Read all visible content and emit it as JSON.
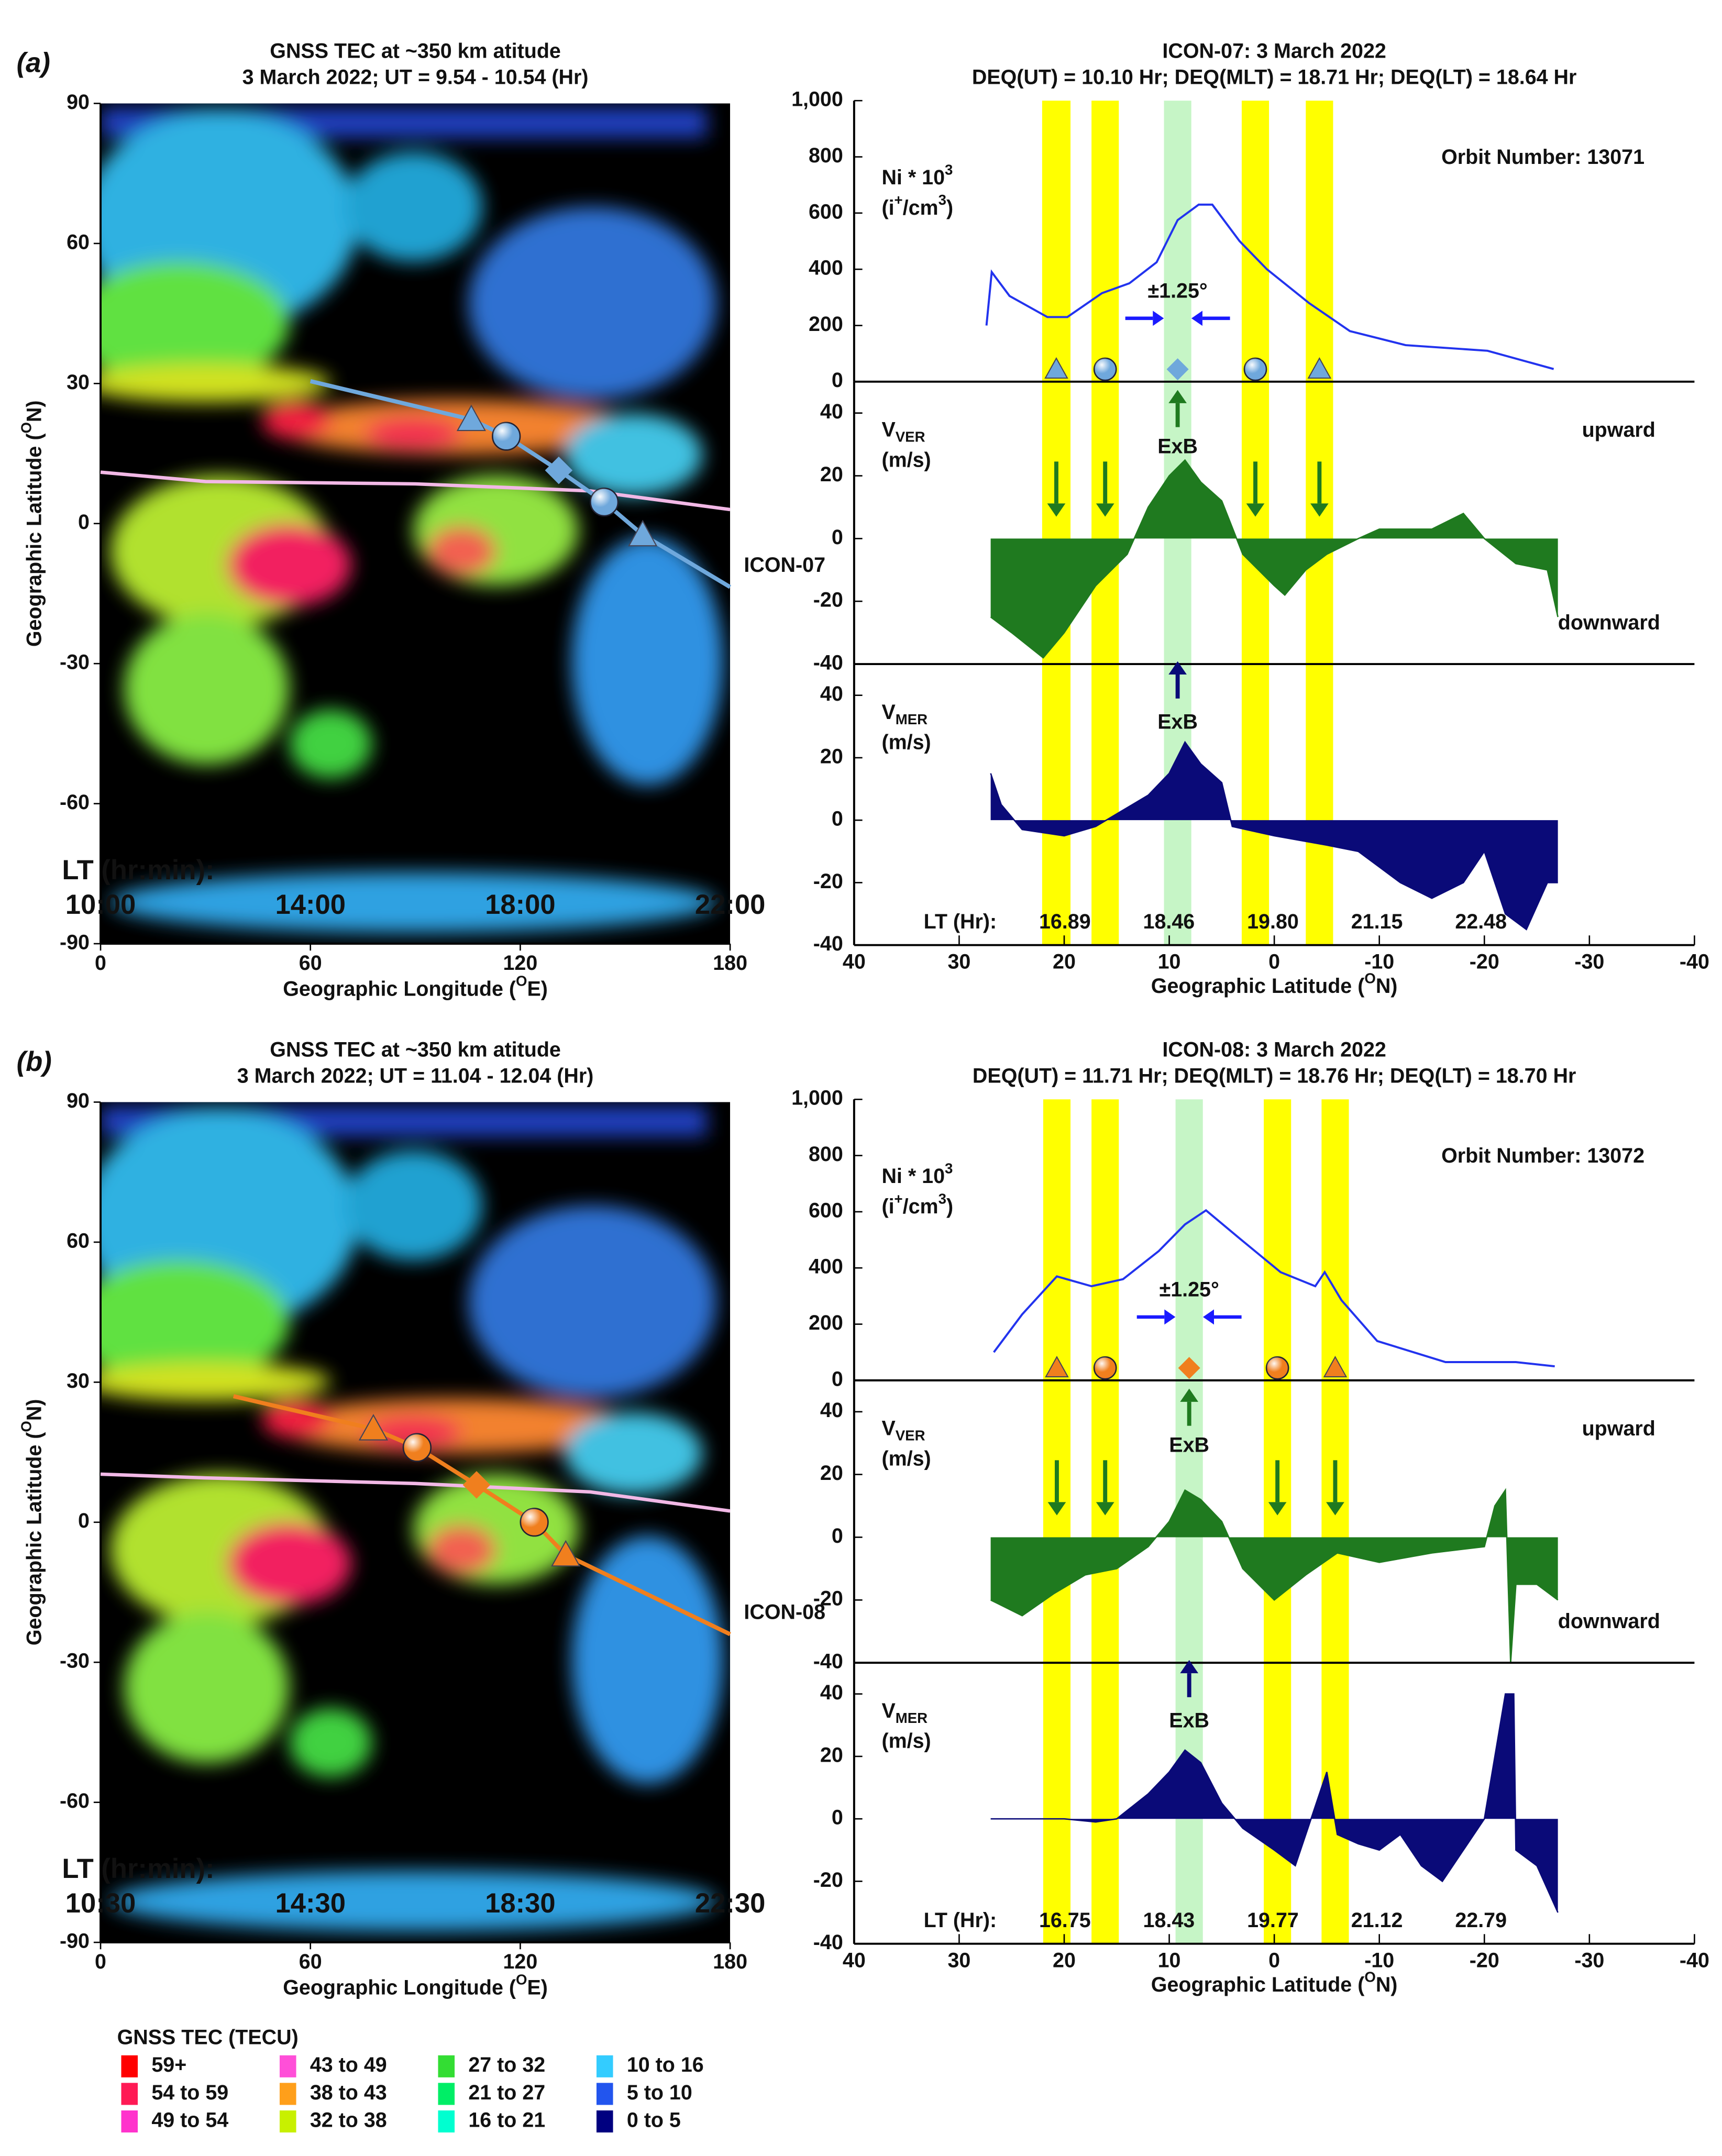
{
  "chart_data": [
    {
      "type": "map",
      "panel": "(a)",
      "title": [
        "GNSS TEC at ~350 km atitude",
        "3 March 2022;  UT = 9.54 - 10.54 (Hr)"
      ],
      "xlabel": [
        "Geographic Longitude (",
        "O",
        "E)"
      ],
      "ylabel": [
        "Geographic Latitude (",
        "O",
        "N)"
      ],
      "xlim": [
        0,
        180
      ],
      "xticks": [
        0,
        60,
        120,
        180
      ],
      "ylim": [
        -90,
        90
      ],
      "yticks": [
        -90,
        -60,
        -30,
        0,
        30,
        60,
        90
      ],
      "lt_title": "LT (hr:min):",
      "lt_labels": [
        "10:00",
        "14:00",
        "18:00",
        "22:00"
      ],
      "lt_color": "#ff1a1a",
      "track": {
        "name": "ICON-07",
        "color": "#6fa8dc",
        "lon": [
          60,
          106,
          116,
          131,
          144,
          155,
          180
        ],
        "lat": [
          30.5,
          22.3,
          18.7,
          11.4,
          4.6,
          -2.4,
          -13.6
        ]
      },
      "equator": {
        "color": "#f2b8e6",
        "lon": [
          0,
          30,
          90,
          140,
          180
        ],
        "lat": [
          11,
          9,
          8.5,
          7,
          3
        ]
      }
    },
    {
      "type": "line",
      "title": [
        "ICON-07: 3 March 2022",
        "DEQ(UT) = 10.10 Hr; DEQ(MLT) = 18.71 Hr; DEQ(LT) = 18.64 Hr"
      ],
      "ylabel": [
        [
          "Ni * 10",
          "3"
        ],
        [
          "(i",
          "+",
          "/cm",
          "3",
          ")"
        ]
      ],
      "axis_color": "#1a1aff",
      "color": "#2233ee",
      "orbit": "Orbit Number: 13071",
      "orbit_color": "#7ab8e8",
      "annotation": "±1.25°",
      "xlim": [
        40,
        -40
      ],
      "ylim": [
        0,
        1000
      ],
      "yticks": [
        0,
        200,
        400,
        600,
        800,
        {
          "value": 1000,
          "label": "1,000"
        }
      ],
      "x": [
        27.4,
        26.9,
        25.2,
        21.6,
        19.7,
        16.4,
        13.8,
        11.2,
        9.2,
        7.2,
        5.9,
        3.3,
        0.7,
        -3.3,
        -7.2,
        -12.5,
        -20.3,
        -26.6
      ],
      "values": [
        200,
        390,
        305,
        230,
        230,
        315,
        350,
        425,
        575,
        630,
        630,
        500,
        400,
        280,
        180,
        130,
        110,
        45
      ],
      "bands": [
        {
          "lim": [
            22.1,
            19.4
          ],
          "color": "#ffff00"
        },
        {
          "lim": [
            17.4,
            14.8
          ],
          "color": "#ffff00"
        },
        {
          "lim": [
            10.5,
            7.9
          ],
          "color": "#c6f5c6"
        },
        {
          "lim": [
            3.1,
            0.5
          ],
          "color": "#ffff00"
        },
        {
          "lim": [
            -3.0,
            -5.6
          ],
          "color": "#ffff00"
        }
      ]
    },
    {
      "type": "area",
      "ylabel": [
        [
          "V",
          "VER"
        ],
        [
          "(m/s)"
        ]
      ],
      "color": "#1f7a1f",
      "up_label": "upward",
      "down_label": "downward",
      "arrow_label": "ExB",
      "xlim": [
        40,
        -40
      ],
      "ylim": [
        -40,
        50
      ],
      "yticks": [
        -40,
        -20,
        0,
        20,
        40
      ],
      "x": [
        27,
        25,
        22,
        20,
        17,
        14,
        12,
        10,
        8.5,
        7,
        5,
        3,
        0,
        -1,
        -3,
        -5,
        -8,
        -10,
        -15,
        -18,
        -20,
        -23,
        -26,
        -27
      ],
      "values": [
        -25,
        -30,
        -38,
        -30,
        -15,
        -5,
        10,
        20,
        25,
        18,
        12,
        -5,
        -15,
        -18,
        -10,
        -5,
        0,
        3,
        3,
        8,
        0,
        -8,
        -10,
        -25
      ]
    },
    {
      "type": "area",
      "ylabel": [
        [
          "V",
          "MER"
        ],
        [
          "(m/s)"
        ]
      ],
      "color": "#0a0a78",
      "arrow_label": "ExB",
      "xlabel": [
        "Geographic Latitude (",
        "O",
        "N)"
      ],
      "lt_title": "LT (Hr):",
      "lt_labels": [
        "16.89",
        "18.46",
        "19.80",
        "21.15",
        "22.48"
      ],
      "lt_color": "#1a1aff",
      "xlim": [
        40,
        -40
      ],
      "xticks": [
        40,
        30,
        20,
        10,
        0,
        -10,
        -20,
        -30,
        -40
      ],
      "ylim": [
        -40,
        50
      ],
      "yticks": [
        -40,
        -20,
        0,
        20,
        40
      ],
      "x": [
        27,
        26,
        24,
        20,
        17,
        15,
        12,
        10,
        8.5,
        7,
        5,
        4,
        0,
        -5,
        -8,
        -10,
        -12,
        -15,
        -18,
        -20,
        -22,
        -24,
        -26,
        -27
      ],
      "values": [
        15,
        5,
        -3,
        -5,
        -2,
        2,
        8,
        15,
        25,
        18,
        12,
        -2,
        -5,
        -8,
        -10,
        -15,
        -20,
        -25,
        -20,
        -10,
        -30,
        -35,
        -20,
        -20
      ]
    },
    {
      "type": "map",
      "panel": "(b)",
      "title": [
        "GNSS TEC at ~350 km atitude",
        "3 March 2022;  UT = 11.04 - 12.04 (Hr)"
      ],
      "xlabel": [
        "Geographic Longitude (",
        "O",
        "E)"
      ],
      "ylabel": [
        "Geographic Latitude (",
        "O",
        "N)"
      ],
      "xlim": [
        0,
        180
      ],
      "xticks": [
        0,
        60,
        120,
        180
      ],
      "ylim": [
        -90,
        90
      ],
      "yticks": [
        -90,
        -60,
        -30,
        0,
        30,
        60,
        90
      ],
      "lt_title": "LT (hr:min):",
      "lt_labels": [
        "10:30",
        "14:30",
        "18:30",
        "22:30"
      ],
      "lt_color": "#ff1a1a",
      "track": {
        "name": "ICON-08",
        "color": "#f07f1e",
        "lon": [
          38,
          78,
          90.5,
          107.5,
          124,
          133,
          180
        ],
        "lat": [
          27,
          20,
          16,
          8,
          0,
          -7,
          -24
        ]
      },
      "equator": {
        "color": "#f2b8e6",
        "lon": [
          0,
          30,
          90,
          140,
          180
        ],
        "lat": [
          10.3,
          9.5,
          8.3,
          6.5,
          2.4
        ]
      }
    },
    {
      "type": "line",
      "title": [
        "ICON-08: 3 March 2022",
        "DEQ(UT) = 11.71 Hr; DEQ(MLT) = 18.76 Hr; DEQ(LT) = 18.70 Hr"
      ],
      "ylabel": [
        [
          "Ni * 10",
          "3"
        ],
        [
          "(i",
          "+",
          "/cm",
          "3",
          ")"
        ]
      ],
      "axis_color": "#1a1aff",
      "color": "#2233ee",
      "orbit": "Orbit Number: 13072",
      "orbit_color": "#f07f1e",
      "annotation": "±1.25°",
      "xlim": [
        40,
        -40
      ],
      "ylim": [
        0,
        1000
      ],
      "yticks": [
        0,
        200,
        400,
        600,
        800,
        {
          "value": 1000,
          "label": "1,000"
        }
      ],
      "x": [
        26.7,
        24,
        20.7,
        17.4,
        14.4,
        11,
        8.5,
        6.5,
        3.3,
        -0.6,
        -3.9,
        -4.8,
        -6.4,
        -9.8,
        -16.3,
        -23,
        -26.7
      ],
      "values": [
        100,
        235,
        370,
        335,
        360,
        460,
        555,
        605,
        505,
        385,
        335,
        385,
        285,
        140,
        65,
        65,
        50
      ],
      "bands": [
        {
          "lim": [
            22,
            19.4
          ],
          "color": "#ffff00"
        },
        {
          "lim": [
            17.4,
            14.8
          ],
          "color": "#ffff00"
        },
        {
          "lim": [
            9.4,
            6.8
          ],
          "color": "#c6f5c6"
        },
        {
          "lim": [
            1,
            -1.6
          ],
          "color": "#ffff00"
        },
        {
          "lim": [
            -4.5,
            -7.1
          ],
          "color": "#ffff00"
        }
      ]
    },
    {
      "type": "area",
      "ylabel": [
        [
          "V",
          "VER"
        ],
        [
          "(m/s)"
        ]
      ],
      "color": "#1f7a1f",
      "up_label": "upward",
      "down_label": "downward",
      "arrow_label": "ExB",
      "xlim": [
        40,
        -40
      ],
      "ylim": [
        -40,
        50
      ],
      "yticks": [
        -40,
        -20,
        0,
        20,
        40
      ],
      "x": [
        27,
        24,
        21,
        18,
        15,
        12,
        10,
        8.5,
        7,
        5,
        3,
        0,
        -3,
        -6,
        -10,
        -15,
        -20,
        -21,
        -22,
        -22.5,
        -23,
        -25,
        -27
      ],
      "values": [
        -20,
        -25,
        -18,
        -12,
        -10,
        -3,
        5,
        15,
        12,
        5,
        -10,
        -20,
        -12,
        -5,
        -8,
        -5,
        -3,
        10,
        15,
        -40,
        -15,
        -15,
        -20
      ]
    },
    {
      "type": "area",
      "ylabel": [
        [
          "V",
          "MER"
        ],
        [
          "(m/s)"
        ]
      ],
      "color": "#0a0a78",
      "arrow_label": "ExB",
      "xlabel": [
        "Geographic Latitude (",
        "O",
        "N)"
      ],
      "lt_title": "LT (Hr):",
      "lt_labels": [
        "16.75",
        "18.43",
        "19.77",
        "21.12",
        "22.79"
      ],
      "lt_color": "#1a1aff",
      "xlim": [
        40,
        -40
      ],
      "xticks": [
        40,
        30,
        20,
        10,
        0,
        -10,
        -20,
        -30,
        -40
      ],
      "ylim": [
        -40,
        50
      ],
      "yticks": [
        -40,
        -20,
        0,
        20,
        40
      ],
      "x": [
        27,
        24,
        20,
        17,
        15,
        12,
        10,
        8.5,
        7,
        5,
        3,
        0,
        -2,
        -4,
        -5,
        -6,
        -8,
        -10,
        -12,
        -14,
        -16,
        -18,
        -20,
        -21,
        -22,
        -22.8,
        -23,
        -25,
        -27
      ],
      "values": [
        0,
        0,
        0,
        -1,
        0,
        8,
        15,
        22,
        18,
        5,
        -3,
        -10,
        -15,
        5,
        15,
        -5,
        -8,
        -10,
        -5,
        -15,
        -20,
        -10,
        0,
        20,
        40,
        40,
        -10,
        -15,
        -30
      ]
    },
    {
      "type": "legend",
      "title": "GNSS TEC (TECU)",
      "entries": [
        {
          "label": "59+",
          "color": "#ff0000"
        },
        {
          "label": "54 to 59",
          "color": "#ff1a55"
        },
        {
          "label": "49 to 54",
          "color": "#ff33cc"
        },
        {
          "label": "43 to 49",
          "color": "#ff4fd8"
        },
        {
          "label": "38 to 43",
          "color": "#ff9f1a"
        },
        {
          "label": "32 to 38",
          "color": "#c8f000"
        },
        {
          "label": "27 to 32",
          "color": "#33dd33"
        },
        {
          "label": "21 to 27",
          "color": "#00ee66"
        },
        {
          "label": "16 to 21",
          "color": "#00ffd0"
        },
        {
          "label": "10 to 16",
          "color": "#33ccff"
        },
        {
          "label": "5 to 10",
          "color": "#2255ee"
        },
        {
          "label": "0 to 5",
          "color": "#000080"
        }
      ]
    }
  ]
}
